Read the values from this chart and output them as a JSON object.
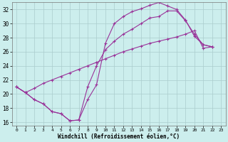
{
  "xlabel": "Windchill (Refroidissement éolien,°C)",
  "bg_color": "#cceeed",
  "grid_color": "#aacccc",
  "line_color": "#993399",
  "xlim": [
    -0.5,
    23.5
  ],
  "ylim": [
    15.5,
    33.0
  ],
  "yticks": [
    16,
    18,
    20,
    22,
    24,
    26,
    28,
    30,
    32
  ],
  "xticks": [
    0,
    1,
    2,
    3,
    4,
    5,
    6,
    7,
    8,
    9,
    10,
    11,
    12,
    13,
    14,
    15,
    16,
    17,
    18,
    19,
    20,
    21,
    22,
    23
  ],
  "line1_x": [
    0,
    1,
    2,
    3,
    4,
    5,
    6,
    7,
    8,
    9,
    10,
    11,
    12,
    13,
    14,
    15,
    16,
    17,
    18,
    19,
    20,
    21,
    22
  ],
  "line1_y": [
    21.0,
    20.2,
    19.2,
    18.6,
    17.5,
    17.2,
    16.2,
    16.3,
    19.2,
    21.3,
    27.2,
    30.0,
    31.0,
    31.7,
    32.1,
    32.6,
    33.0,
    32.5,
    32.0,
    30.5,
    28.2,
    27.0,
    26.7
  ],
  "line2_x": [
    0,
    1,
    2,
    3,
    4,
    5,
    6,
    7,
    8,
    9,
    10,
    11,
    12,
    13,
    14,
    15,
    16,
    17,
    18,
    19,
    20,
    21,
    22
  ],
  "line2_y": [
    21.0,
    20.2,
    19.2,
    18.6,
    17.5,
    17.2,
    16.2,
    16.3,
    21.0,
    24.0,
    26.3,
    27.5,
    28.5,
    29.2,
    30.0,
    30.8,
    31.0,
    31.8,
    31.8,
    30.4,
    28.5,
    27.0,
    26.7
  ],
  "line3_x": [
    0,
    1,
    2,
    3,
    4,
    5,
    6,
    7,
    8,
    9,
    10,
    11,
    12,
    13,
    14,
    15,
    16,
    17,
    18,
    19,
    20,
    21,
    22
  ],
  "line3_y": [
    21.0,
    20.2,
    20.8,
    21.5,
    22.0,
    22.5,
    23.0,
    23.5,
    24.0,
    24.5,
    25.0,
    25.5,
    26.0,
    26.4,
    26.8,
    27.2,
    27.5,
    27.8,
    28.1,
    28.5,
    29.0,
    26.5,
    26.7
  ]
}
